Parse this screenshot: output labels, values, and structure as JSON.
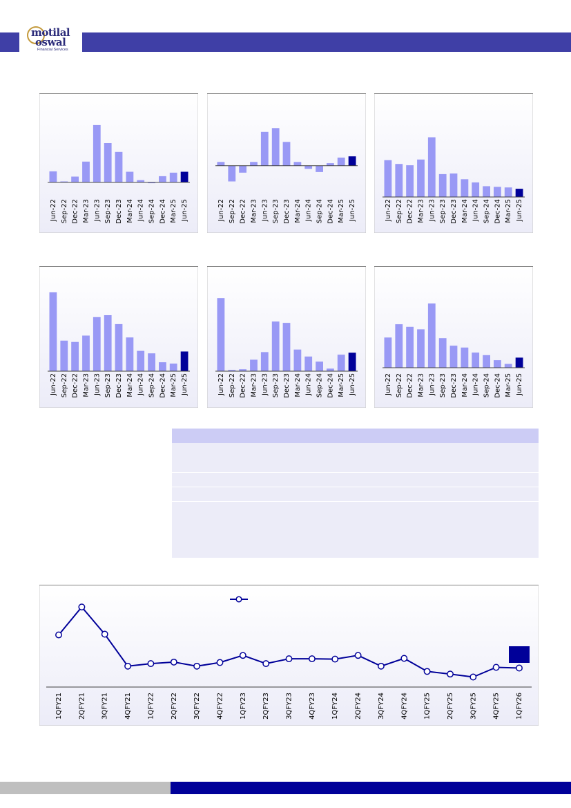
{
  "header": {
    "logo_line1": "motilal",
    "logo_line2": "oswal",
    "logo_sub": "Financial Services"
  },
  "colors": {
    "brand": "#3f3fa6",
    "bar": "#9999f5",
    "bar_highlight": "#000099",
    "panel_bg_top": "#ffffff",
    "panel_bg_bottom": "#ececf8",
    "line": "#000099",
    "table_head": "#ccccf5",
    "table_body": "#ececf8",
    "footer_gray": "#bfbfbf",
    "footer_blue": "#000099"
  },
  "chart_data": [
    {
      "type": "bar",
      "categories": [
        "Jun-22",
        "Sep-22",
        "Dec-22",
        "Mar-23",
        "Jun-23",
        "Sep-23",
        "Dec-23",
        "Mar-24",
        "Jun-24",
        "Sep-24",
        "Dec-24",
        "Mar-25",
        "Jun-25"
      ],
      "values": [
        25,
        2,
        13,
        47,
        130,
        89,
        69,
        24,
        5,
        -2,
        14,
        22,
        24
      ],
      "ylim": [
        -5,
        180
      ],
      "highlight_last": true
    },
    {
      "type": "bar",
      "categories": [
        "Jun-22",
        "Sep-22",
        "Dec-22",
        "Mar-23",
        "Jun-23",
        "Sep-23",
        "Dec-23",
        "Mar-24",
        "Jun-24",
        "Sep-24",
        "Dec-24",
        "Mar-25",
        "Jun-25"
      ],
      "values": [
        6,
        -25,
        -11,
        6,
        54,
        60,
        38,
        6,
        -5,
        -10,
        4,
        13,
        15
      ],
      "ylim": [
        -30,
        100
      ],
      "highlight_last": true
    },
    {
      "type": "bar",
      "categories": [
        "Jun-22",
        "Sep-22",
        "Dec-22",
        "Mar-23",
        "Jun-23",
        "Sep-23",
        "Dec-23",
        "Mar-24",
        "Jun-24",
        "Sep-24",
        "Dec-24",
        "Mar-25",
        "Jun-25"
      ],
      "values": [
        58,
        52,
        50,
        59,
        94,
        36,
        37,
        28,
        23,
        17,
        16,
        15,
        13
      ],
      "ylim": [
        0,
        148
      ],
      "highlight_last": true
    },
    {
      "type": "bar",
      "categories": [
        "Jun-22",
        "Sep-22",
        "Dec-22",
        "Mar-23",
        "Jun-23",
        "Sep-23",
        "Dec-23",
        "Mar-24",
        "Jun-24",
        "Sep-24",
        "Dec-24",
        "Mar-25",
        "Jun-25"
      ],
      "values": [
        124,
        48,
        46,
        56,
        85,
        88,
        74,
        53,
        32,
        28,
        14,
        12,
        31
      ],
      "ylim": [
        0,
        150
      ],
      "highlight_last": true
    },
    {
      "type": "bar",
      "categories": [
        "Jun-22",
        "Sep-22",
        "Dec-22",
        "Mar-23",
        "Jun-23",
        "Sep-23",
        "Dec-23",
        "Mar-24",
        "Jun-24",
        "Sep-24",
        "Dec-24",
        "Mar-25",
        "Jun-25"
      ],
      "values": [
        115,
        2,
        3,
        18,
        30,
        78,
        76,
        34,
        23,
        15,
        4,
        26,
        29
      ],
      "ylim": [
        0,
        150
      ],
      "highlight_last": true
    },
    {
      "type": "bar",
      "categories": [
        "Jun-22",
        "Sep-22",
        "Dec-22",
        "Mar-23",
        "Jun-23",
        "Sep-23",
        "Dec-23",
        "Mar-24",
        "Jun-24",
        "Sep-24",
        "Dec-24",
        "Mar-25",
        "Jun-25"
      ],
      "values": [
        48,
        69,
        65,
        61,
        102,
        47,
        35,
        32,
        24,
        20,
        12,
        6,
        16
      ],
      "ylim": [
        0,
        146
      ],
      "highlight_last": true
    },
    {
      "type": "line",
      "categories": [
        "1QFY21",
        "2QFY21",
        "3QFY21",
        "4QFY21",
        "1QFY22",
        "2QFY22",
        "3QFY22",
        "4QFY22",
        "1QFY23",
        "2QFY23",
        "3QFY23",
        "4QFY23",
        "1QFY24",
        "2QFY24",
        "3QFY24",
        "4QFY24",
        "1QFY25",
        "2QFY25",
        "3QFY25",
        "4QFY25",
        "1QFY26"
      ],
      "values": [
        25.0,
        32.5,
        25.2,
        16.6,
        17.3,
        17.7,
        16.6,
        17.6,
        19.5,
        17.3,
        18.6,
        18.6,
        18.5,
        19.5,
        16.6,
        18.7,
        15.2,
        14.5,
        13.7,
        16.3,
        16.1
      ],
      "ylim": [
        11,
        37
      ]
    }
  ]
}
